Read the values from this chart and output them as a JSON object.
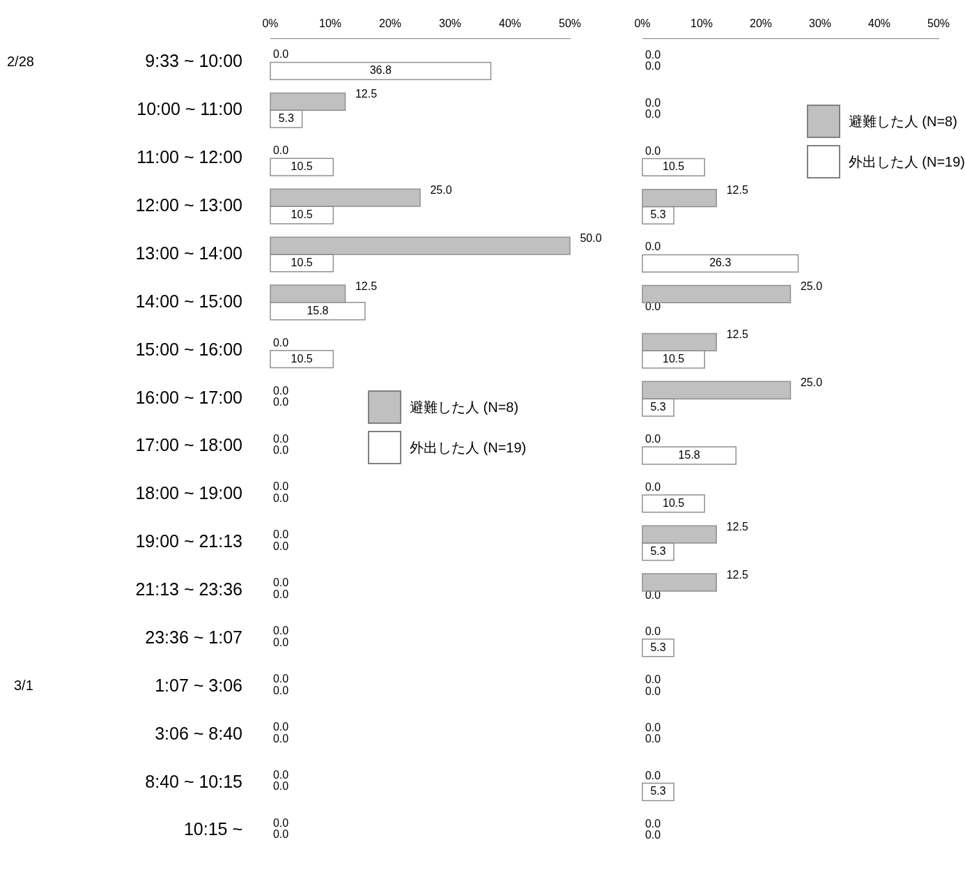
{
  "chart_data": [
    {
      "type": "bar",
      "orientation": "horizontal",
      "categories": [
        "9:33 ~ 10:00",
        "10:00 ~ 11:00",
        "11:00 ~ 12:00",
        "12:00 ~ 13:00",
        "13:00 ~ 14:00",
        "14:00 ~ 15:00",
        "15:00 ~ 16:00",
        "16:00 ~ 17:00",
        "17:00 ~ 18:00",
        "18:00 ~ 19:00",
        "19:00 ~ 21:13",
        "21:13 ~ 23:36",
        "23:36 ~ 1:07",
        "1:07 ~ 3:06",
        "3:06 ~ 8:40",
        "8:40 ~ 10:15",
        "10:15 ~"
      ],
      "series": [
        {
          "name": "避難した人 (N=8)",
          "color": "#c0c0c0",
          "values": [
            0,
            12.5,
            0,
            25,
            50,
            12.5,
            0,
            0,
            0,
            0,
            0,
            0,
            0,
            0,
            0,
            0,
            0
          ],
          "value_labels": [
            "0.0",
            "12.5",
            "0.0",
            "25.0",
            "50.0",
            "12.5",
            "0.0",
            "0.0",
            "0.0",
            "0.0",
            "0.0",
            "0.0",
            "0.0",
            "0.0",
            "0.0",
            "0.0",
            "0.0"
          ]
        },
        {
          "name": "外出した人 (N=19)",
          "color": "#ffffff",
          "values": [
            36.8,
            5.3,
            10.5,
            10.5,
            10.5,
            15.8,
            10.5,
            0,
            0,
            0,
            0,
            0,
            0,
            0,
            0,
            0,
            0
          ],
          "value_labels": [
            "36.8",
            "5.3",
            "10.5",
            "10.5",
            "10.5",
            "15.8",
            "10.5",
            "0.0",
            "0.0",
            "0.0",
            "0.0",
            "0.0",
            "0.0",
            "0.0",
            "0.0",
            "0.0",
            "0.0"
          ]
        }
      ],
      "xlim": [
        0,
        50
      ],
      "xticks": [
        {
          "value": 0,
          "label": "0%"
        },
        {
          "value": 10,
          "label": "10%"
        },
        {
          "value": 20,
          "label": "20%"
        },
        {
          "value": 30,
          "label": "30%"
        },
        {
          "value": 40,
          "label": "40%"
        },
        {
          "value": 50,
          "label": "50%"
        }
      ],
      "grid": false,
      "legend": "center",
      "annotations": [
        "2/28",
        "3/1"
      ]
    },
    {
      "type": "bar",
      "orientation": "horizontal",
      "series": [
        {
          "name": "避難した人 (N=8)",
          "color": "#c0c0c0",
          "values": [
            0,
            0,
            0,
            12.5,
            0,
            25,
            12.5,
            25,
            0,
            0,
            12.5,
            12.5,
            0,
            0,
            0,
            0,
            0
          ],
          "value_labels": [
            "0.0",
            "0.0",
            "0.0",
            "12.5",
            "0.0",
            "25.0",
            "12.5",
            "25.0",
            "0.0",
            "0.0",
            "12.5",
            "12.5",
            "0.0",
            "0.0",
            "0.0",
            "0.0",
            "0.0"
          ]
        },
        {
          "name": "外出した人 (N=19)",
          "color": "#ffffff",
          "values": [
            0,
            0,
            10.5,
            5.3,
            26.3,
            0,
            10.5,
            5.3,
            15.8,
            10.5,
            5.3,
            0,
            5.3,
            0,
            0,
            5.3,
            0
          ],
          "value_labels": [
            "0.0",
            "0.0",
            "10.5",
            "5.3",
            "26.3",
            "0.0",
            "10.5",
            "5.3",
            "15.8",
            "10.5",
            "5.3",
            "0.0",
            "5.3",
            "0.0",
            "0.0",
            "5.3",
            "0.0"
          ]
        }
      ],
      "xlim": [
        0,
        50
      ],
      "xticks": [
        {
          "value": 0,
          "label": "0%"
        },
        {
          "value": 10,
          "label": "10%"
        },
        {
          "value": 20,
          "label": "20%"
        },
        {
          "value": 30,
          "label": "30%"
        },
        {
          "value": 40,
          "label": "40%"
        },
        {
          "value": 50,
          "label": "50%"
        }
      ],
      "grid": false,
      "legend": "top right",
      "tick_labels": "x"
    }
  ]
}
